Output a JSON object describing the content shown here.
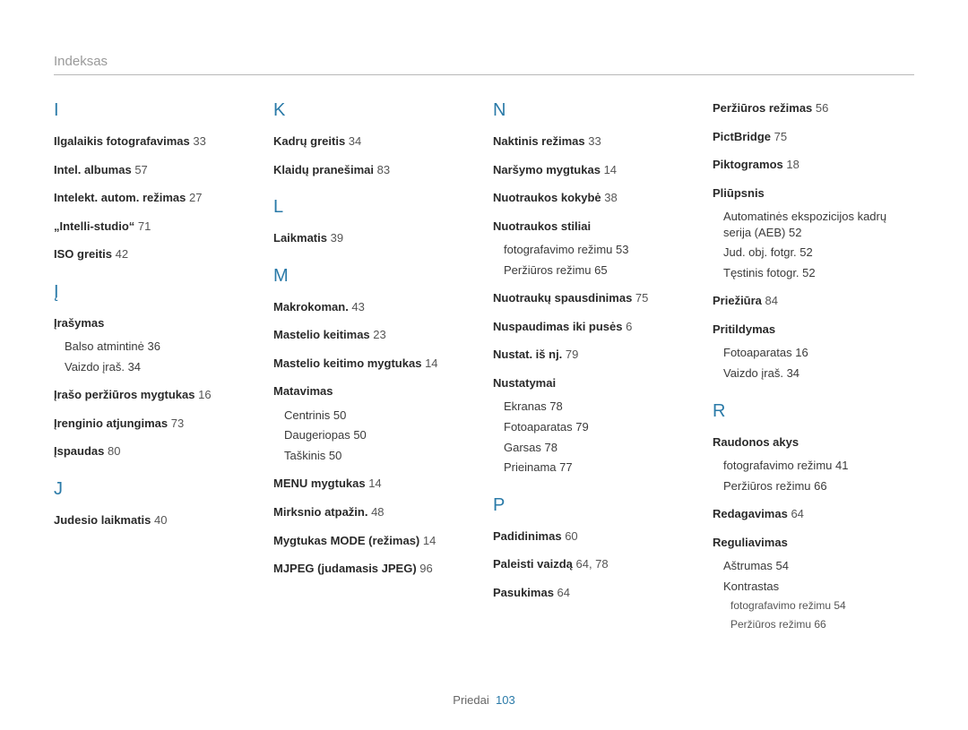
{
  "header": "Indeksas",
  "footer_label": "Priedai",
  "footer_page": "103",
  "columns": [
    {
      "sections": [
        {
          "letter": "I",
          "entries": [
            {
              "label": "Ilgalaikis fotografavimas",
              "page": "33"
            },
            {
              "label": "Intel. albumas",
              "page": "57"
            },
            {
              "label": "Intelekt. autom. režimas",
              "page": "27"
            },
            {
              "label": "„Intelli-studio“",
              "page": "71"
            },
            {
              "label": "ISO greitis",
              "page": "42"
            }
          ]
        },
        {
          "letter": "Į",
          "entries": [
            {
              "label": "Įrašymas",
              "subs": [
                {
                  "label": "Balso atmintinė",
                  "page": "36"
                },
                {
                  "label": "Vaizdo įraš.",
                  "page": "34"
                }
              ]
            },
            {
              "label": "Įrašo peržiūros mygtukas",
              "page": "16"
            },
            {
              "label": "Įrenginio atjungimas",
              "page": "73"
            },
            {
              "label": "Įspaudas",
              "page": "80"
            }
          ]
        },
        {
          "letter": "J",
          "entries": [
            {
              "label": "Judesio laikmatis",
              "page": "40"
            }
          ]
        }
      ]
    },
    {
      "sections": [
        {
          "letter": "K",
          "entries": [
            {
              "label": "Kadrų greitis",
              "page": "34"
            },
            {
              "label": "Klaidų pranešimai",
              "page": "83"
            }
          ]
        },
        {
          "letter": "L",
          "entries": [
            {
              "label": "Laikmatis",
              "page": "39"
            }
          ]
        },
        {
          "letter": "M",
          "entries": [
            {
              "label": "Makrokoman.",
              "page": "43"
            },
            {
              "label": "Mastelio keitimas",
              "page": "23"
            },
            {
              "label": "Mastelio keitimo mygtukas",
              "page": "14"
            },
            {
              "label": "Matavimas",
              "subs": [
                {
                  "label": "Centrinis",
                  "page": "50"
                },
                {
                  "label": "Daugeriopas",
                  "page": "50"
                },
                {
                  "label": "Taškinis",
                  "page": "50"
                }
              ]
            },
            {
              "label": "MENU mygtukas",
              "page": "14"
            },
            {
              "label": "Mirksnio atpažin.",
              "page": "48"
            },
            {
              "label": "Mygtukas MODE (režimas)",
              "page": "14"
            },
            {
              "label": "MJPEG (judamasis JPEG)",
              "page": "96"
            }
          ]
        }
      ]
    },
    {
      "sections": [
        {
          "letter": "N",
          "entries": [
            {
              "label": "Naktinis režimas",
              "page": "33"
            },
            {
              "label": "Naršymo mygtukas",
              "page": "14"
            },
            {
              "label": "Nuotraukos kokybė",
              "page": "38"
            },
            {
              "label": "Nuotraukos stiliai",
              "subs": [
                {
                  "label": "fotografavimo režimu",
                  "page": "53"
                },
                {
                  "label": "Peržiūros režimu",
                  "page": "65"
                }
              ]
            },
            {
              "label": "Nuotraukų spausdinimas",
              "page": "75"
            },
            {
              "label": "Nuspaudimas iki pusės",
              "page": "6"
            },
            {
              "label": "Nustat. iš nj.",
              "page": "79"
            },
            {
              "label": "Nustatymai",
              "subs": [
                {
                  "label": "Ekranas",
                  "page": "78"
                },
                {
                  "label": "Fotoaparatas",
                  "page": "79"
                },
                {
                  "label": "Garsas",
                  "page": "78"
                },
                {
                  "label": "Prieinama",
                  "page": "77"
                }
              ]
            }
          ]
        },
        {
          "letter": "P",
          "entries": [
            {
              "label": "Padidinimas",
              "page": "60"
            },
            {
              "label": "Paleisti vaizdą",
              "page": "64, 78"
            },
            {
              "label": "Pasukimas",
              "page": "64"
            }
          ]
        }
      ]
    },
    {
      "sections": [
        {
          "letter": "",
          "entries": [
            {
              "label": "Peržiūros režimas",
              "page": "56"
            },
            {
              "label": "PictBridge",
              "page": "75"
            },
            {
              "label": "Piktogramos",
              "page": "18"
            },
            {
              "label": "Pliūpsnis",
              "subs": [
                {
                  "label": "Automatinės ekspozicijos kadrų serija (AEB)",
                  "page": "52"
                },
                {
                  "label": "Jud. obj. fotgr.",
                  "page": "52"
                },
                {
                  "label": "Tęstinis fotogr.",
                  "page": "52"
                }
              ]
            },
            {
              "label": "Priežiūra",
              "page": "84"
            },
            {
              "label": "Pritildymas",
              "subs": [
                {
                  "label": "Fotoaparatas",
                  "page": "16"
                },
                {
                  "label": "Vaizdo įraš.",
                  "page": "34"
                }
              ]
            }
          ]
        },
        {
          "letter": "R",
          "entries": [
            {
              "label": "Raudonos akys",
              "subs": [
                {
                  "label": "fotografavimo režimu",
                  "page": "41"
                },
                {
                  "label": "Peržiūros režimu",
                  "page": "66"
                }
              ]
            },
            {
              "label": "Redagavimas",
              "page": "64"
            },
            {
              "label": "Reguliavimas",
              "subs": [
                {
                  "label": "Aštrumas",
                  "page": "54"
                },
                {
                  "label": "Kontrastas",
                  "subsubs": [
                    {
                      "label": "fotografavimo režimu",
                      "page": "54"
                    },
                    {
                      "label": "Peržiūros režimu",
                      "page": "66"
                    }
                  ]
                }
              ]
            }
          ]
        }
      ]
    }
  ]
}
